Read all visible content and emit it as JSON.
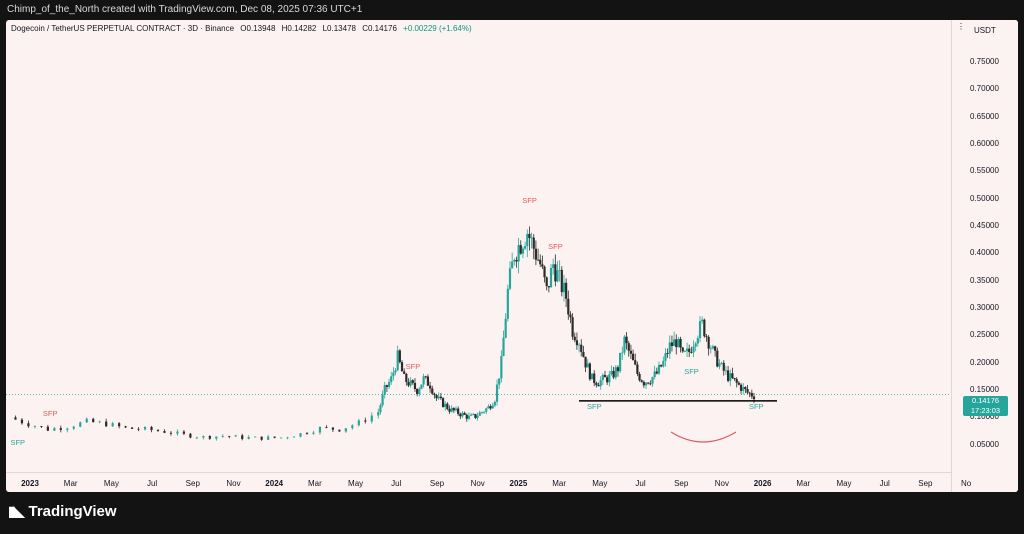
{
  "header": {
    "credit": "Chimp_of_the_North created with TradingView.com, Dec 08, 2025 07:36 UTC+1"
  },
  "legend": {
    "symbol": "Dogecoin / TetherUS PERPETUAL CONTRACT · 3D · Binance",
    "open": "O0.13948",
    "high": "H0.14282",
    "low": "L0.13478",
    "close": "C0.14176",
    "change": "+0.00229 (+1.64%)"
  },
  "axis": {
    "currency": "USDT",
    "menu": "⋮"
  },
  "price_badge": {
    "price": "0.14176",
    "countdown": "17:23:03"
  },
  "annotations": {
    "sfp_label": "SFP"
  },
  "footer": {
    "brand": "TradingView"
  },
  "colors": {
    "up": "#26a69a",
    "down": "#2b2b2b",
    "sfp_red": "#e05a5a",
    "sfp_green": "#26a69a",
    "background": "#fdf2f2"
  },
  "chart_data": {
    "type": "candlestick",
    "title": "Dogecoin / TetherUS PERPETUAL CONTRACT · 3D · Binance",
    "y_ticks": [
      "0.75000",
      "0.70000",
      "0.65000",
      "0.60000",
      "0.55000",
      "0.50000",
      "0.45000",
      "0.40000",
      "0.35000",
      "0.30000",
      "0.25000",
      "0.20000",
      "0.15000",
      "0.10000",
      "0.05000"
    ],
    "x_ticks": [
      {
        "label": "2023",
        "year": true
      },
      {
        "label": "Mar",
        "year": false
      },
      {
        "label": "May",
        "year": false
      },
      {
        "label": "Jul",
        "year": false
      },
      {
        "label": "Sep",
        "year": false
      },
      {
        "label": "Nov",
        "year": false
      },
      {
        "label": "2024",
        "year": true
      },
      {
        "label": "Mar",
        "year": false
      },
      {
        "label": "May",
        "year": false
      },
      {
        "label": "Jul",
        "year": false
      },
      {
        "label": "Sep",
        "year": false
      },
      {
        "label": "Nov",
        "year": false
      },
      {
        "label": "2025",
        "year": true
      },
      {
        "label": "Mar",
        "year": false
      },
      {
        "label": "May",
        "year": false
      },
      {
        "label": "Jul",
        "year": false
      },
      {
        "label": "Sep",
        "year": false
      },
      {
        "label": "Nov",
        "year": false
      },
      {
        "label": "2026",
        "year": true
      },
      {
        "label": "Mar",
        "year": false
      },
      {
        "label": "May",
        "year": false
      },
      {
        "label": "Jul",
        "year": false
      },
      {
        "label": "Sep",
        "year": false
      },
      {
        "label": "No",
        "year": false
      }
    ],
    "ylim": [
      0.0,
      0.79
    ],
    "price_path": [
      [
        0,
        0.1
      ],
      [
        3,
        0.088
      ],
      [
        6,
        0.078
      ],
      [
        9,
        0.083
      ],
      [
        12,
        0.092
      ],
      [
        15,
        0.088
      ],
      [
        18,
        0.08
      ],
      [
        21,
        0.078
      ],
      [
        24,
        0.074
      ],
      [
        27,
        0.068
      ],
      [
        30,
        0.064
      ],
      [
        33,
        0.066
      ],
      [
        36,
        0.063
      ],
      [
        39,
        0.062
      ],
      [
        42,
        0.063
      ],
      [
        45,
        0.07
      ],
      [
        48,
        0.08
      ],
      [
        51,
        0.078
      ],
      [
        54,
        0.09
      ],
      [
        57,
        0.11
      ],
      [
        58,
        0.15
      ],
      [
        59,
        0.17
      ],
      [
        60,
        0.21
      ],
      [
        61,
        0.17
      ],
      [
        62,
        0.16
      ],
      [
        63,
        0.15
      ],
      [
        64,
        0.17
      ],
      [
        65,
        0.16
      ],
      [
        66,
        0.135
      ],
      [
        67,
        0.125
      ],
      [
        68,
        0.115
      ],
      [
        69,
        0.11
      ],
      [
        70,
        0.105
      ],
      [
        71,
        0.1
      ],
      [
        72,
        0.102
      ],
      [
        73,
        0.11
      ],
      [
        74,
        0.118
      ],
      [
        75,
        0.135
      ],
      [
        76,
        0.2
      ],
      [
        77,
        0.33
      ],
      [
        78,
        0.4
      ],
      [
        79,
        0.42
      ],
      [
        80,
        0.44
      ],
      [
        81,
        0.41
      ],
      [
        82,
        0.38
      ],
      [
        83,
        0.33
      ],
      [
        84,
        0.38
      ],
      [
        85,
        0.35
      ],
      [
        86,
        0.32
      ],
      [
        87,
        0.26
      ],
      [
        88,
        0.24
      ],
      [
        89,
        0.2
      ],
      [
        90,
        0.17
      ],
      [
        91,
        0.165
      ],
      [
        92,
        0.17
      ],
      [
        93,
        0.175
      ],
      [
        94,
        0.19
      ],
      [
        95,
        0.24
      ],
      [
        96,
        0.21
      ],
      [
        97,
        0.18
      ],
      [
        98,
        0.165
      ],
      [
        99,
        0.17
      ],
      [
        100,
        0.18
      ],
      [
        101,
        0.2
      ],
      [
        102,
        0.23
      ],
      [
        103,
        0.24
      ],
      [
        104,
        0.21
      ],
      [
        105,
        0.22
      ],
      [
        106,
        0.25
      ],
      [
        107,
        0.27
      ],
      [
        108,
        0.24
      ],
      [
        109,
        0.21
      ],
      [
        110,
        0.19
      ],
      [
        111,
        0.175
      ],
      [
        112,
        0.165
      ],
      [
        113,
        0.155
      ],
      [
        114,
        0.145
      ],
      [
        115,
        0.14
      ]
    ],
    "sfp_red": [
      [
        "SFP",
        6,
        0.09
      ],
      [
        "SFP",
        62,
        0.175
      ],
      [
        "SFP",
        80,
        0.48
      ],
      [
        "SFP",
        84,
        0.395
      ]
    ],
    "sfp_green": [
      [
        "SFP",
        1,
        0.07
      ],
      [
        "SFP",
        90,
        0.135
      ],
      [
        "SFP",
        105,
        0.2
      ],
      [
        "SFP",
        115,
        0.135
      ]
    ]
  }
}
